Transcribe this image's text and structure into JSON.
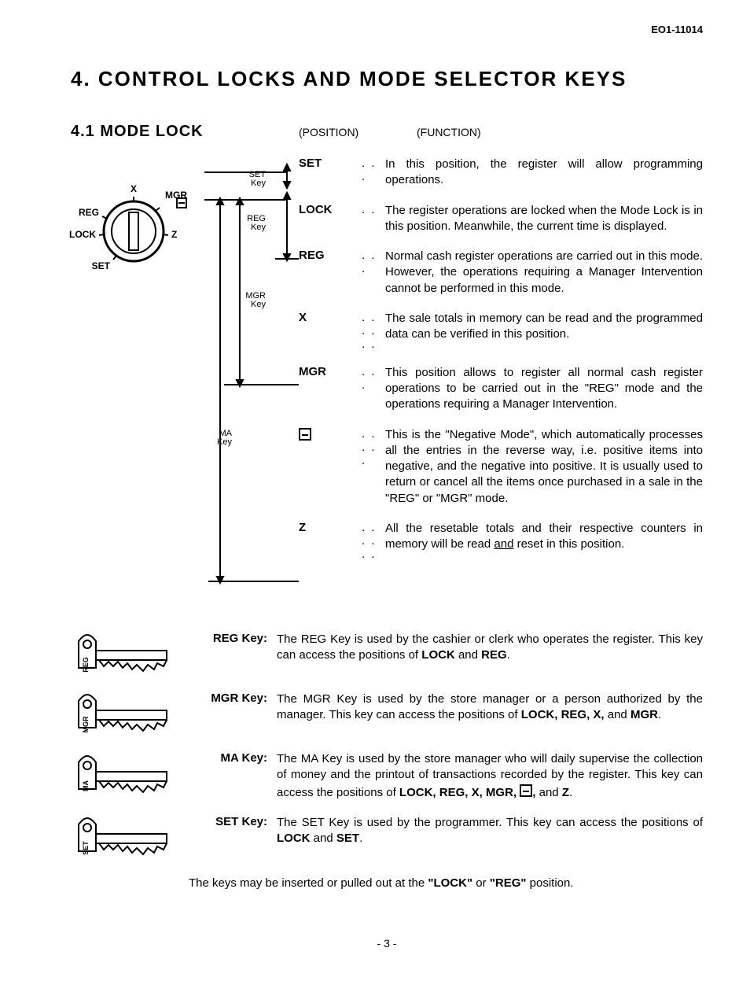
{
  "doc_id": "EO1-11014",
  "title": "4. CONTROL LOCKS AND MODE SELECTOR KEYS",
  "subsection": "4.1  MODE LOCK",
  "col_position": "(POSITION)",
  "col_function": "(FUNCTION)",
  "dial": {
    "labels": {
      "x": "X",
      "mgr": "MGR",
      "reg": "REG",
      "lock": "LOCK",
      "set": "SET",
      "z": "Z"
    },
    "keycol": {
      "set": "SET\nKey",
      "reg": "REG\nKey",
      "mgr": "MGR\nKey",
      "ma": "MA\nKey"
    }
  },
  "positions": [
    {
      "label": "SET",
      "dots": ". . .",
      "desc": "In this position, the register will allow programming operations."
    },
    {
      "label": "LOCK",
      "dots": ". .",
      "desc": "The register operations are locked when the Mode Lock is in this position.   Meanwhile, the current time is displayed."
    },
    {
      "label": "REG",
      "dots": ". . .",
      "desc": "Normal cash register operations are carried out in this mode.   However, the operations requiring a Manager Intervention cannot be performed in this mode."
    },
    {
      "label": "X",
      "dots": ". . . . . .",
      "desc": "The sale totals in memory can be read and the programmed data can be verified in this position."
    },
    {
      "label": "MGR",
      "dots": ". . .",
      "desc": "This position allows to register all normal cash register operations to be carried out in the \"REG\" mode and the operations requiring a Manager Intervention."
    },
    {
      "label": "NEG",
      "dots": ". . . . .",
      "desc": "This is the \"Negative Mode\", which automatically processes all the entries in the reverse way, i.e. positive items into negative, and the negative into positive.   It is usually used to return or cancel all the items once purchased in a sale in the \"REG\" or \"MGR\" mode."
    },
    {
      "label": "Z",
      "dots": ". . . . . .",
      "desc_html": "All the resetable totals and their respective counters in memory will be read <span class='under'>and</span> reset in this position."
    }
  ],
  "keys": [
    {
      "name": "REG",
      "label": "REG Key:",
      "desc_html": "The REG Key is used by the cashier or clerk who operates the register.  This key can access the positions of <b>LOCK</b> and <b>REG</b>."
    },
    {
      "name": "MGR",
      "label": "MGR Key:",
      "desc_html": "The MGR Key is used by the store manager or a person authorized by the manager.   This key can access the positions of <b>LOCK, REG, X,</b> and <b>MGR</b>."
    },
    {
      "name": "MA",
      "label": "MA Key:",
      "desc_html": "The MA Key is used by the store manager who will daily supervise the collection of money and the printout of transactions recorded by the register.   This key can access the positions of <b>LOCK, REG, X, MGR, <span class='neg-box'></span>,</b> and <b>Z</b>."
    },
    {
      "name": "SET",
      "label": "SET Key:",
      "desc_html": "The SET Key is used by the programmer.   This key can access the positions of <b>LOCK</b> and <b>SET</b>."
    }
  ],
  "note_html": "The keys may be inserted or pulled out at the <b>\"LOCK\"</b> or <b>\"REG\"</b> position.",
  "pagenum": "- 3 -"
}
